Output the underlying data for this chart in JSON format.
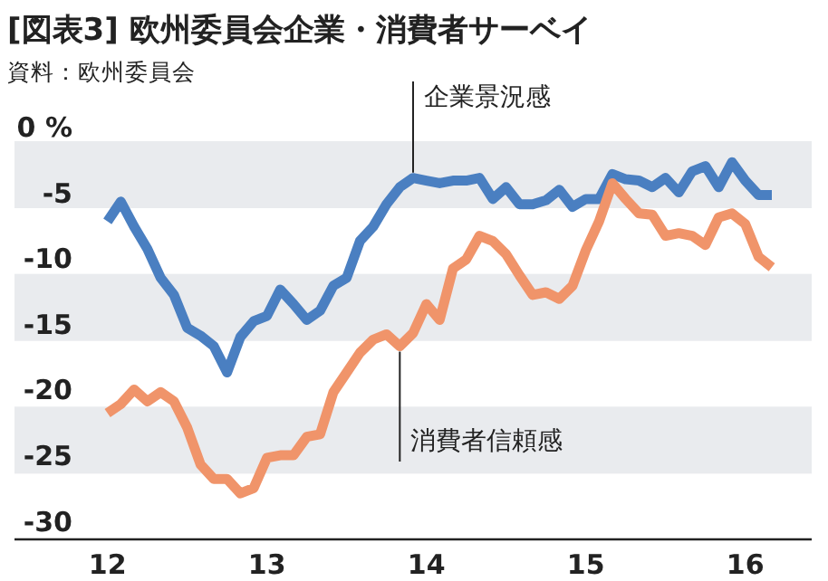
{
  "chart_data": {
    "type": "line",
    "title": "[図表3] 欧州委員会企業・消費者サーベイ",
    "subtitle": "資料：欧州委員会",
    "x": [
      "2012-01",
      "2012-02",
      "2012-03",
      "2012-04",
      "2012-05",
      "2012-06",
      "2012-07",
      "2012-08",
      "2012-09",
      "2012-10",
      "2012-11",
      "2012-12",
      "2013-01",
      "2013-02",
      "2013-03",
      "2013-04",
      "2013-05",
      "2013-06",
      "2013-07",
      "2013-08",
      "2013-09",
      "2013-10",
      "2013-11",
      "2013-12",
      "2014-01",
      "2014-02",
      "2014-03",
      "2014-04",
      "2014-05",
      "2014-06",
      "2014-07",
      "2014-08",
      "2014-09",
      "2014-10",
      "2014-11",
      "2014-12",
      "2015-01",
      "2015-02",
      "2015-03",
      "2015-04",
      "2015-05",
      "2015-06",
      "2015-07",
      "2015-08",
      "2015-09",
      "2015-10",
      "2015-11",
      "2015-12",
      "2016-01",
      "2016-02",
      "2016-03"
    ],
    "series": [
      {
        "color": "#4a7fc1",
        "values": [
          -7.2,
          -5.7,
          -7.6,
          -9.3,
          -11.5,
          -12.8,
          -15.3,
          -15.9,
          -16.7,
          -18.7,
          -16.0,
          -14.8,
          -14.4,
          -12.4,
          -13.5,
          -14.7,
          -14.0,
          -12.1,
          -11.5,
          -8.7,
          -7.6,
          -5.9,
          -4.6,
          -3.9,
          -4.1,
          -4.3,
          -4.1,
          -4.1,
          -3.9,
          -5.5,
          -4.6,
          -5.9,
          -5.9,
          -5.6,
          -4.8,
          -6.1,
          -5.5,
          -5.5,
          -3.6,
          -4.0,
          -4.1,
          -4.6,
          -3.9,
          -5.0,
          -3.4,
          -3.0,
          -4.6,
          -2.7,
          -4.1,
          -5.2,
          -5.2
        ]
      },
      {
        "color": "#f0946a",
        "values": [
          -21.8,
          -21.1,
          -20.0,
          -20.9,
          -20.2,
          -20.9,
          -22.9,
          -25.7,
          -26.8,
          -26.8,
          -27.9,
          -27.5,
          -25.2,
          -25.0,
          -25.0,
          -23.6,
          -23.4,
          -20.2,
          -18.7,
          -17.2,
          -16.2,
          -15.8,
          -16.7,
          -15.7,
          -13.5,
          -14.7,
          -10.8,
          -10.1,
          -8.3,
          -8.7,
          -9.7,
          -11.3,
          -12.8,
          -12.6,
          -13.1,
          -12.1,
          -9.4,
          -7.2,
          -4.3,
          -5.5,
          -6.6,
          -6.7,
          -8.3,
          -8.1,
          -8.3,
          -9.0,
          -6.9,
          -6.6,
          -7.4,
          -9.9,
          -10.7
        ]
      }
    ],
    "xlim": [
      "2011-06",
      "2016-06"
    ],
    "xticks": [
      {
        "value": "2012-01",
        "label": "12"
      },
      {
        "value": "2013-01",
        "label": "13"
      },
      {
        "value": "2014-01",
        "label": "14"
      },
      {
        "value": "2015-01",
        "label": "15"
      },
      {
        "value": "2016-01",
        "label": "16"
      }
    ],
    "ylim": [
      -31.4,
      0
    ],
    "yticks": [
      {
        "value": 0,
        "label": "0 %"
      },
      -5,
      -10,
      -15,
      -20,
      -25,
      -30
    ],
    "bands": [
      {
        "axis": "y",
        "from": -1.1,
        "to": -6.2,
        "color": "#e9ebee"
      },
      {
        "axis": "y",
        "from": -11.2,
        "to": -16.3,
        "color": "#e9ebee"
      },
      {
        "axis": "y",
        "from": -21.3,
        "to": -26.4,
        "color": "#e9ebee"
      }
    ],
    "annotations": [
      {
        "text": "企業景況感",
        "x": "2013-12",
        "y": -3.9
      },
      {
        "text": "消費者信頼感",
        "x": "2013-11",
        "y": -16.7
      }
    ],
    "grid": false,
    "marker": "none",
    "line_style": "solid"
  }
}
